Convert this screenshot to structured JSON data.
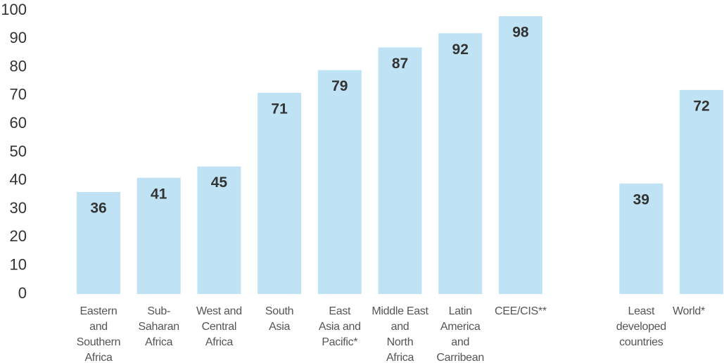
{
  "chart_data": {
    "type": "bar",
    "categories": [
      "Eastern\nand\nSouthern\nAfrica",
      "Sub-\nSaharan\nAfrica",
      "West and\nCentral\nAfrica",
      "South\nAsia",
      "East\nAsia and\nPacific*",
      "Middle East\nand\nNorth\nAfrica",
      "Latin\nAmerica\nand\nCarribean",
      "CEE/CIS**",
      null,
      "Least\ndeveloped\ncountries",
      "World*"
    ],
    "values": [
      36,
      41,
      45,
      71,
      79,
      87,
      92,
      98,
      null,
      39,
      72
    ],
    "color": "#bfe3f5",
    "ylim": [
      0,
      100
    ],
    "yticks": [
      0,
      10,
      20,
      30,
      40,
      50,
      60,
      70,
      80,
      90,
      100
    ]
  }
}
